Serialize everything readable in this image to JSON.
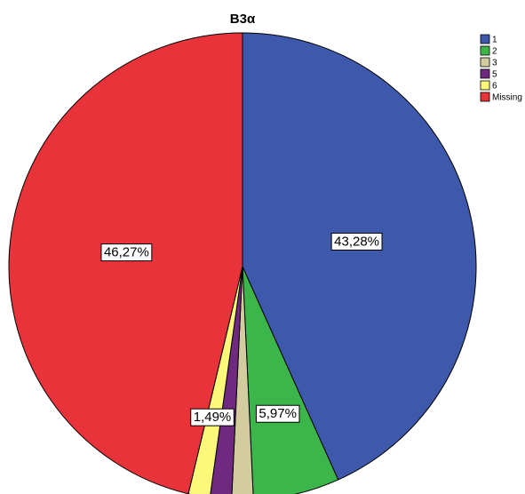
{
  "chart_data": {
    "type": "pie",
    "title": "B3α",
    "categories": [
      "1",
      "2",
      "3",
      "5",
      "6",
      "Missing"
    ],
    "values": [
      43.28,
      5.97,
      1.49,
      1.49,
      1.49,
      46.27
    ],
    "value_labels": [
      "43,28%",
      "5,97%",
      null,
      "1,49%",
      null,
      "46,27%"
    ],
    "colors": [
      "#3e58ac",
      "#3cb54a",
      "#d3cc9e",
      "#6f2a80",
      "#fbf87a",
      "#e8333b"
    ],
    "legend": "top-right"
  }
}
